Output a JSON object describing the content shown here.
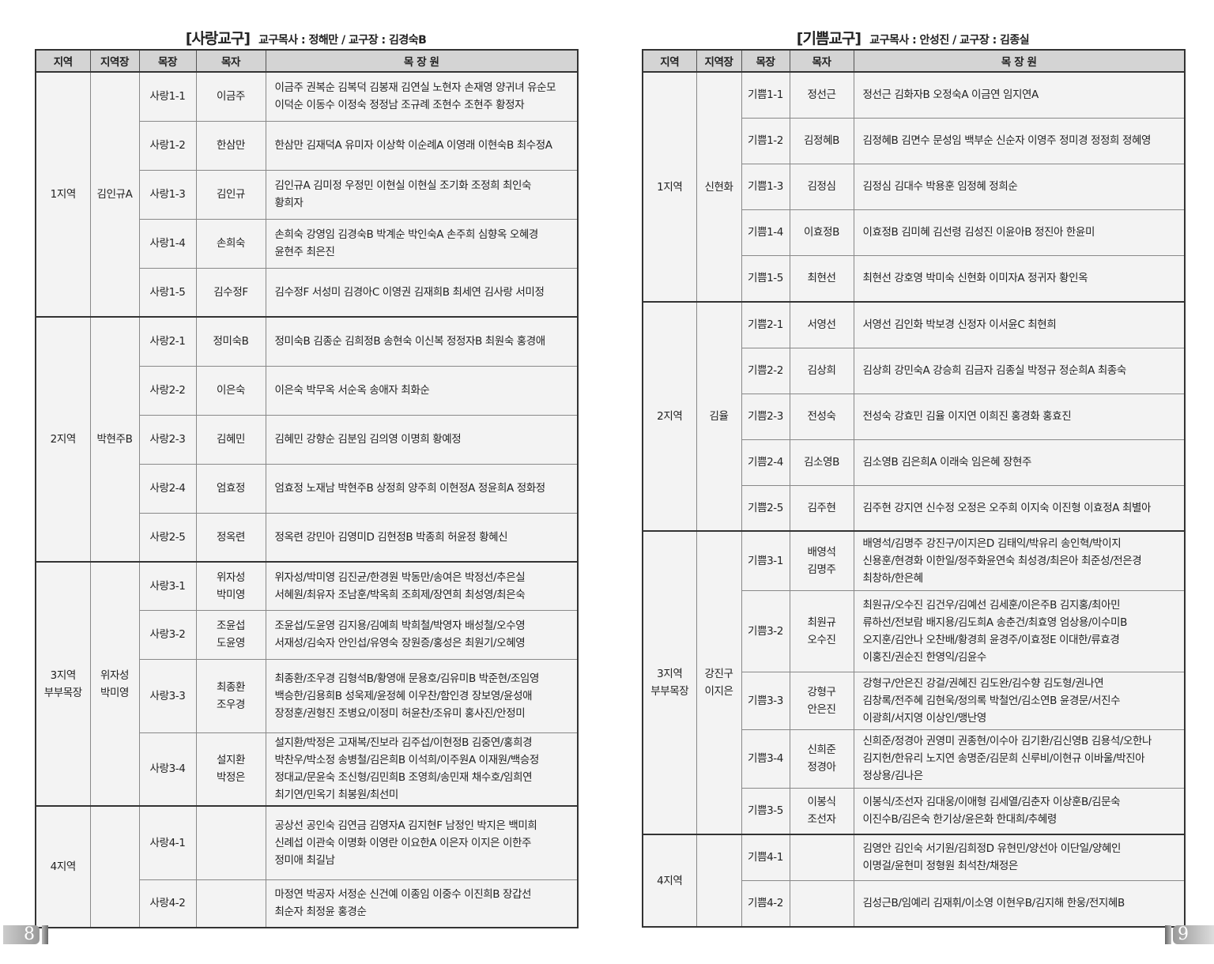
{
  "pages": [
    {
      "page_number": "8",
      "title": "[사랑교구]",
      "subtitle": "교구목사 : 정해만 / 교구장 : 김경숙B",
      "headers": [
        "지역",
        "지역장",
        "목장",
        "목자",
        "목 장 원"
      ],
      "regions": [
        {
          "region": [
            "1지역"
          ],
          "leader": [
            "김인규A"
          ],
          "groups": [
            {
              "name": "사랑1-1",
              "shepherd": [
                "이금주"
              ],
              "members": [
                "이금주 권복순 김복덕 김봉재 김연실 노현자 손재영 양귀녀 유순모",
                "이덕순 이동수 이정숙 정정남 조규례 조현수 조현주 황정자"
              ]
            },
            {
              "name": "사랑1-2",
              "shepherd": [
                "한삼만"
              ],
              "members": [
                "한삼만 김재덕A 유미자 이상학 이순례A 이영래 이현숙B 최수정A"
              ]
            },
            {
              "name": "사랑1-3",
              "shepherd": [
                "김인규"
              ],
              "members": [
                "김인규A 김미정 우정민 이현실 이현실 조기화 조정희 최인숙",
                "황희자"
              ]
            },
            {
              "name": "사랑1-4",
              "shepherd": [
                "손희숙"
              ],
              "members": [
                "손희숙 강영임 김경숙B 박계순 박인숙A 손주희 심향옥 오혜경",
                "윤현주 최은진"
              ]
            },
            {
              "name": "사랑1-5",
              "shepherd": [
                "김수정F"
              ],
              "members": [
                "김수정F 서성미 김경아C 이영권 김재희B 최세연 김사랑 서미정"
              ]
            }
          ]
        },
        {
          "region": [
            "2지역"
          ],
          "leader": [
            "박현주B"
          ],
          "groups": [
            {
              "name": "사랑2-1",
              "shepherd": [
                "정미숙B"
              ],
              "members": [
                "정미숙B 김종순 김희정B 송현숙 이신복 정정자B 최원숙 홍경애"
              ]
            },
            {
              "name": "사랑2-2",
              "shepherd": [
                "이은숙"
              ],
              "members": [
                "이은숙 박무옥 서순옥 송애자 최화순"
              ]
            },
            {
              "name": "사랑2-3",
              "shepherd": [
                "김혜민"
              ],
              "members": [
                "김혜민 강향순 김분임 김의영 이명희 황예정"
              ]
            },
            {
              "name": "사랑2-4",
              "shepherd": [
                "엄효정"
              ],
              "members": [
                "엄효정 노재남 박현주B 상정희 양주희 이현정A 정윤희A 정화정"
              ]
            },
            {
              "name": "사랑2-5",
              "shepherd": [
                "정옥련"
              ],
              "members": [
                "정옥련 강민아 김영미D 김현정B 박종희 허윤정 황혜신"
              ]
            }
          ]
        },
        {
          "region": [
            "3지역",
            "부부목장"
          ],
          "leader": [
            "위자성",
            "박미영"
          ],
          "groups": [
            {
              "name": "사랑3-1",
              "shepherd": [
                "위자성",
                "박미영"
              ],
              "members": [
                "위자성/박미영 김진균/한경원 박동만/송여은 박정선/추은실",
                "서혜원/최유자 조남훈/박옥희 조희제/장연희 최성영/최은숙"
              ]
            },
            {
              "name": "사랑3-2",
              "shepherd": [
                "조윤섭",
                "도윤영"
              ],
              "members": [
                "조윤섭/도윤영 김지용/김예희 박희철/박영자 배성철/오수영",
                "서재성/김숙자 안인섭/유영숙 장원증/홍성은 최원기/오혜영"
              ]
            },
            {
              "name": "사랑3-3",
              "shepherd": [
                "최종환",
                "조우경"
              ],
              "members": [
                "최종환/조우경 김형석B/황영애 문용호/김유미B 박준현/조임영",
                "백승한/김용희B 성욱제/윤정혜 이우찬/함인경 장보영/윤성애",
                "장정훈/권형진 조병요/이정미 허윤찬/조유미 홍사진/안정미"
              ]
            },
            {
              "name": "사랑3-4",
              "shepherd": [
                "설지환",
                "박정은"
              ],
              "members": [
                "설지환/박정은 고재복/진보라 김주섭/이현정B 김중연/홍희경",
                "박찬우/박소정 송병철/김은희B 이석희/이주원A 이재원/백승정",
                "정대교/문윤숙 조신형/김민희B 조영희/송민재 채수호/임희연",
                "최기연/민옥기 최봉원/최선미"
              ]
            }
          ]
        },
        {
          "region": [
            "4지역"
          ],
          "leader": [],
          "groups": [
            {
              "name": "사랑4-1",
              "shepherd": [],
              "members": [
                "공상선 공인숙 김연금 김영자A 김지현F 남정인 박지은 백미희",
                "신례섭 이관숙 이명화 이영란 이요한A 이은자 이지은 이한주",
                "정미애 최길남"
              ]
            },
            {
              "name": "사랑4-2",
              "shepherd": [],
              "members": [
                "마정연 박공자 서정순 신건예 이종임 이중수 이진희B 장갑선",
                "최순자 최정윤 홍경순"
              ]
            }
          ]
        }
      ]
    },
    {
      "page_number": "9",
      "title": "[기쁨교구]",
      "subtitle": "교구목사 : 안성진 / 교구장 : 김종실",
      "headers": [
        "지역",
        "지역장",
        "목장",
        "목자",
        "목 장 원"
      ],
      "regions": [
        {
          "region": [
            "1지역"
          ],
          "leader": [
            "신현화"
          ],
          "groups": [
            {
              "name": "기쁨1-1",
              "shepherd": [
                "정선근"
              ],
              "members": [
                "정선근 김화자B 오정숙A 이금연 임지연A"
              ]
            },
            {
              "name": "기쁨1-2",
              "shepherd": [
                "김정혜B"
              ],
              "members": [
                "김정혜B 김면수 문성임 백부순 신순자 이영주 정미경 정정희 정혜영"
              ]
            },
            {
              "name": "기쁨1-3",
              "shepherd": [
                "김정심"
              ],
              "members": [
                "김정심 김대수 박용훈 임정혜 정희순"
              ]
            },
            {
              "name": "기쁨1-4",
              "shepherd": [
                "이효정B"
              ],
              "members": [
                "이효정B 김미혜 김선령 김성진 이윤아B 정진아 한윤미"
              ]
            },
            {
              "name": "기쁨1-5",
              "shepherd": [
                "최현선"
              ],
              "members": [
                "최현선 강호영 박미숙 신현화 이미자A 정귀자 황인옥"
              ]
            }
          ]
        },
        {
          "region": [
            "2지역"
          ],
          "leader": [
            "김율"
          ],
          "groups": [
            {
              "name": "기쁨2-1",
              "shepherd": [
                "서영선"
              ],
              "members": [
                "서영선 김인화 박보경 신정자 이서윤C 최현희"
              ]
            },
            {
              "name": "기쁨2-2",
              "shepherd": [
                "김상희"
              ],
              "members": [
                "김상희 강민숙A 강승희 김금자 김종실 박정규 정순희A 최종숙"
              ]
            },
            {
              "name": "기쁨2-3",
              "shepherd": [
                "전성숙"
              ],
              "members": [
                "전성숙 강효민 김율 이지연 이희진 홍경화 홍효진"
              ]
            },
            {
              "name": "기쁨2-4",
              "shepherd": [
                "김소영B"
              ],
              "members": [
                "김소영B 김은희A 이래숙 임은혜 장현주"
              ]
            },
            {
              "name": "기쁨2-5",
              "shepherd": [
                "김주현"
              ],
              "members": [
                "김주현 강지연 신수정 오정은 오주희 이지숙 이진형 이효정A 최별아"
              ]
            }
          ]
        },
        {
          "region": [
            "3지역",
            "부부목장"
          ],
          "leader": [
            "강진구",
            "이지은"
          ],
          "groups": [
            {
              "name": "기쁨3-1",
              "shepherd": [
                "배영석",
                "김명주"
              ],
              "members": [
                "배영석/김명주 강진구/이지은D 김태익/박유리 송인혁/박이지",
                "신용훈/현경화 이한일/정주화윤연숙 최성경/최은아 최준성/전은경",
                "최창하/한은혜"
              ]
            },
            {
              "name": "기쁨3-2",
              "shepherd": [
                "최원규",
                "오수진"
              ],
              "members": [
                "최원규/오수진 김건우/김예선 김세훈/이은주B 김지홍/최아민",
                "류하선/전보람 배지용/김도희A 송춘건/최효영 엄상용/이수미B",
                "오지훈/김안나 오찬배/황경희 윤경주/이효정E 이대한/류효경",
                "이홍진/권순진 한영익/김윤수"
              ]
            },
            {
              "name": "기쁨3-3",
              "shepherd": [
                "강형구",
                "안은진"
              ],
              "members": [
                "강형구/안은진 강걸/권혜진 김도완/김수향 김도형/권나연",
                "김창록/전주혜 김현욱/정의록 박철언/김소연B 윤경문/서진수",
                "이광희/서지영 이상인/맹난영"
              ]
            },
            {
              "name": "기쁨3-4",
              "shepherd": [
                "신희준",
                "정경아"
              ],
              "members": [
                "신희준/정경아 권영미 권종현/이수아 김기환/김신영B 김용석/오한나",
                "김지헌/한유리 노지연 송명준/김문희 신루비/이현규 이바울/박진아",
                "정상용/김나은"
              ]
            },
            {
              "name": "기쁨3-5",
              "shepherd": [
                "이봉식",
                "조선자"
              ],
              "members": [
                "이봉식/조선자 김대웅/이애형 김세열/김춘자 이상훈B/김문숙",
                "이진수B/김은숙 한기상/윤은화 한대희/추혜령"
              ]
            }
          ]
        },
        {
          "region": [
            "4지역"
          ],
          "leader": [],
          "groups": [
            {
              "name": "기쁨4-1",
              "shepherd": [],
              "members": [
                "김영안 김인숙 서기원/김희정D 유현민/양선아 이단일/양혜인",
                "이명걸/윤현미 정형원 최석찬/채정은"
              ]
            },
            {
              "name": "기쁨4-2",
              "shepherd": [],
              "members": [
                "김성근B/임예리 김재휘/이소영 이현우B/김지해 한웅/전지혜B"
              ]
            }
          ]
        }
      ]
    }
  ]
}
